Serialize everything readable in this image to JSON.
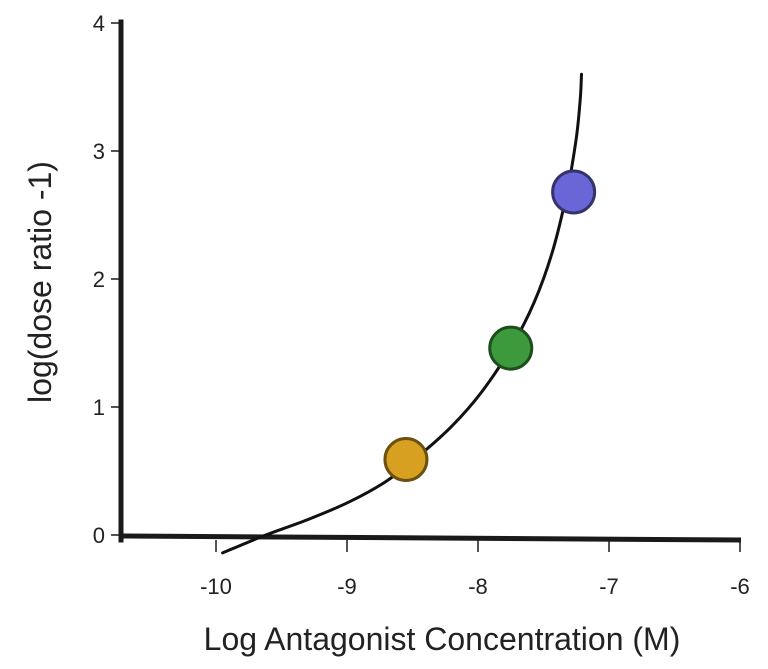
{
  "chart_data": {
    "type": "scatter",
    "title": "",
    "xlabel": "Log Antagonist  Concentration (M)",
    "ylabel": "log(dose ratio -1)",
    "xlim": [
      -10.75,
      -6
    ],
    "ylim": [
      0,
      4
    ],
    "x_ticks": [
      -10,
      -9,
      -8,
      -7,
      -6
    ],
    "y_ticks": [
      0,
      1,
      2,
      3,
      4
    ],
    "x_tick_labels": [
      "-10",
      "-9",
      "-8",
      "-7",
      "-6"
    ],
    "y_tick_labels": [
      "0",
      "1",
      "2",
      "3",
      "4"
    ],
    "grid": false,
    "legend": "none",
    "points": [
      {
        "x": -8.55,
        "y": 0.59,
        "color": "#D8A020"
      },
      {
        "x": -7.75,
        "y": 1.46,
        "color": "#3C9A3C"
      },
      {
        "x": -7.27,
        "y": 2.68,
        "color": "#6A66D8"
      }
    ],
    "fit_curve": {
      "x": [
        -9.95,
        -9.62,
        -9.3,
        -8.98,
        -8.7,
        -8.45,
        -8.2,
        -7.97,
        -7.75,
        -7.57,
        -7.43,
        -7.32,
        -7.25,
        -7.22,
        -7.21
      ],
      "y": [
        -0.14,
        0.0,
        0.12,
        0.26,
        0.42,
        0.62,
        0.85,
        1.12,
        1.46,
        1.82,
        2.22,
        2.68,
        3.1,
        3.4,
        3.6
      ],
      "color": "#111111"
    },
    "axis_color": "#1A1A1A"
  }
}
